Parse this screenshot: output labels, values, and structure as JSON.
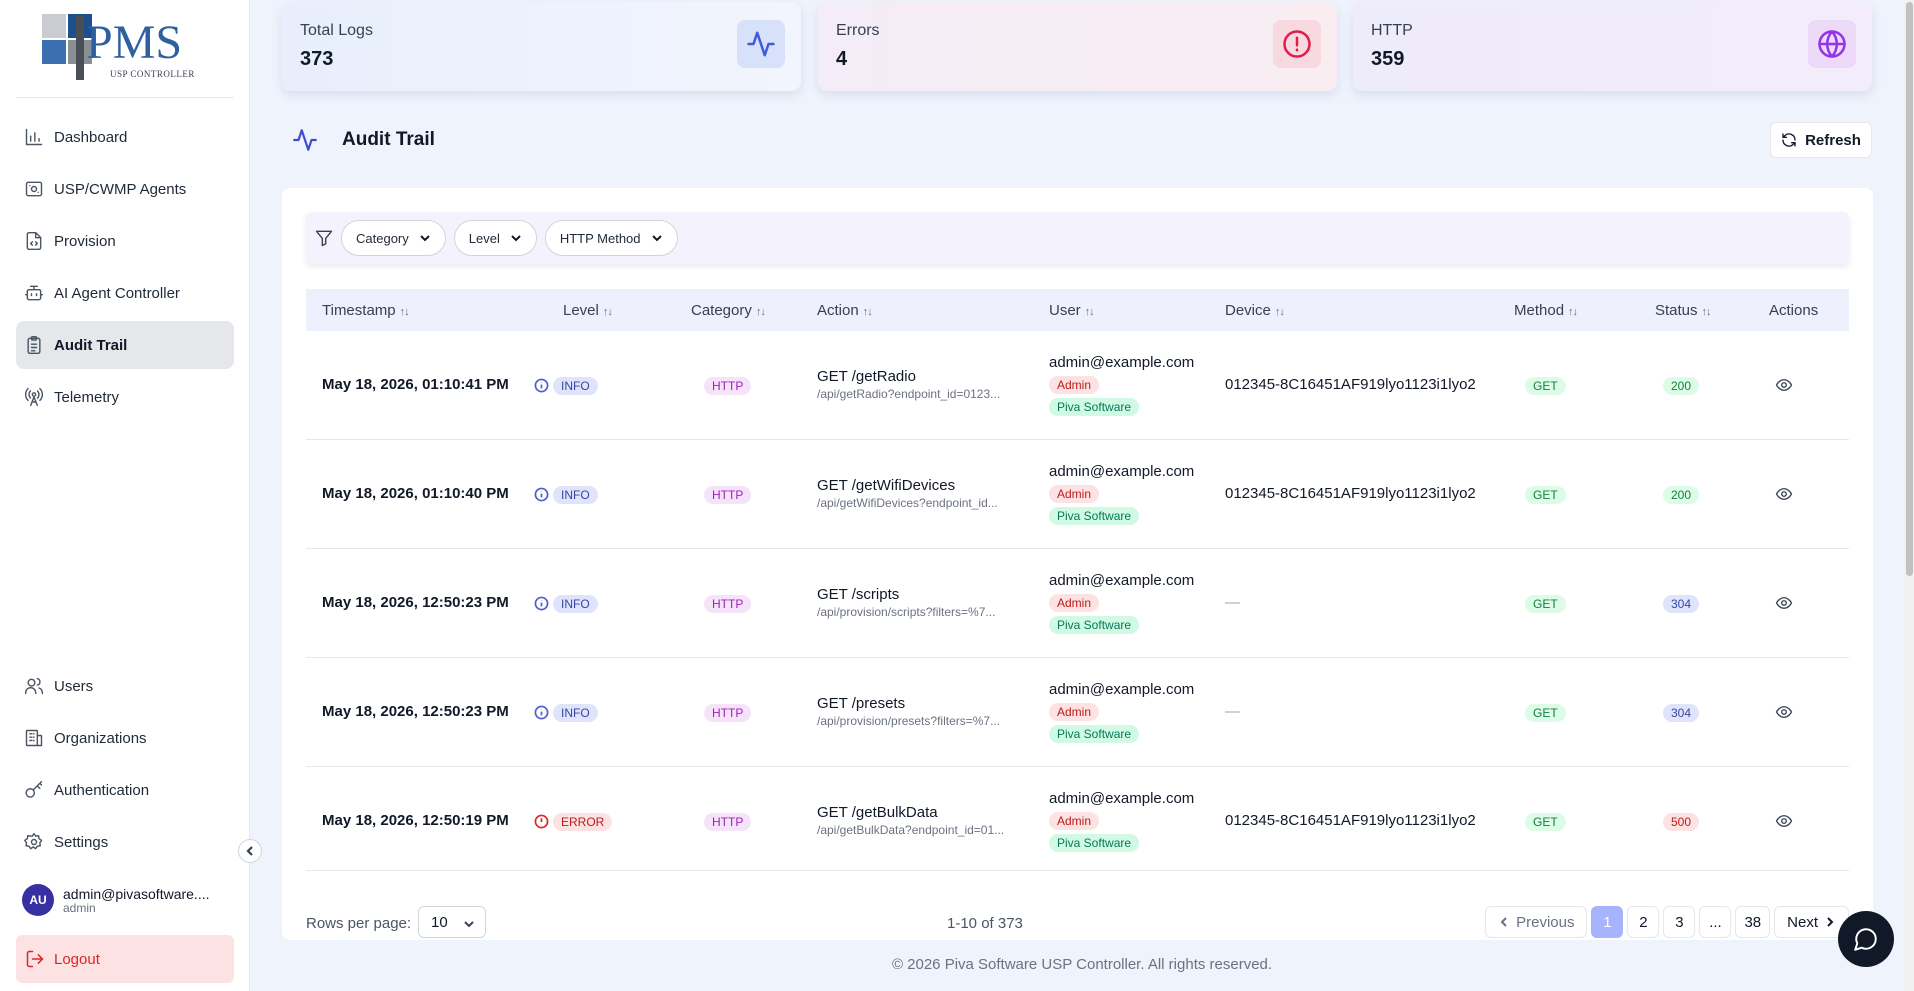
{
  "brand": {
    "logo_text": "PMS",
    "logo_sub": "USP CONTROLLER"
  },
  "sidebar": {
    "items": [
      {
        "label": "Dashboard",
        "icon": "bar-chart-icon"
      },
      {
        "label": "USP/CWMP Agents",
        "icon": "router-icon"
      },
      {
        "label": "Provision",
        "icon": "file-code-icon"
      },
      {
        "label": "AI Agent Controller",
        "icon": "bot-icon"
      },
      {
        "label": "Audit Trail",
        "icon": "clipboard-list-icon",
        "active": true
      },
      {
        "label": "Telemetry",
        "icon": "radio-tower-icon"
      }
    ],
    "bottom_items": [
      {
        "label": "Users",
        "icon": "users-icon"
      },
      {
        "label": "Organizations",
        "icon": "building-icon"
      },
      {
        "label": "Authentication",
        "icon": "key-icon"
      },
      {
        "label": "Settings",
        "icon": "gear-icon"
      }
    ],
    "user": {
      "initials": "AU",
      "name": "admin@pivasoftware....",
      "role": "admin"
    },
    "logout_label": "Logout"
  },
  "stats": [
    {
      "label": "Total Logs",
      "value": "373",
      "icon": "activity-icon"
    },
    {
      "label": "Errors",
      "value": "4",
      "icon": "alert-circle-icon"
    },
    {
      "label": "HTTP",
      "value": "359",
      "icon": "globe-icon"
    }
  ],
  "page": {
    "title": "Audit Trail",
    "refresh_label": "Refresh"
  },
  "filters": [
    "Category",
    "Level",
    "HTTP Method"
  ],
  "table": {
    "columns": [
      "Timestamp",
      "Level",
      "Category",
      "Action",
      "User",
      "Device",
      "Method",
      "Status",
      "Actions"
    ],
    "rows": [
      {
        "timestamp": "May 18, 2026, 01:10:41 PM",
        "level": "INFO",
        "category": "HTTP",
        "action": "GET /getRadio",
        "path": "/api/getRadio?endpoint_id=0123...",
        "user": "admin@example.com",
        "role": "Admin",
        "org": "Piva Software",
        "device": "012345-8C16451AF919lyo1123i1lyo2",
        "method": "GET",
        "status": "200"
      },
      {
        "timestamp": "May 18, 2026, 01:10:40 PM",
        "level": "INFO",
        "category": "HTTP",
        "action": "GET /getWifiDevices",
        "path": "/api/getWifiDevices?endpoint_id...",
        "user": "admin@example.com",
        "role": "Admin",
        "org": "Piva Software",
        "device": "012345-8C16451AF919lyo1123i1lyo2",
        "method": "GET",
        "status": "200"
      },
      {
        "timestamp": "May 18, 2026, 12:50:23 PM",
        "level": "INFO",
        "category": "HTTP",
        "action": "GET /scripts",
        "path": "/api/provision/scripts?filters=%7...",
        "user": "admin@example.com",
        "role": "Admin",
        "org": "Piva Software",
        "device": "—",
        "method": "GET",
        "status": "304"
      },
      {
        "timestamp": "May 18, 2026, 12:50:23 PM",
        "level": "INFO",
        "category": "HTTP",
        "action": "GET /presets",
        "path": "/api/provision/presets?filters=%7...",
        "user": "admin@example.com",
        "role": "Admin",
        "org": "Piva Software",
        "device": "—",
        "method": "GET",
        "status": "304"
      },
      {
        "timestamp": "May 18, 2026, 12:50:19 PM",
        "level": "ERROR",
        "category": "HTTP",
        "action": "GET /getBulkData",
        "path": "/api/getBulkData?endpoint_id=01...",
        "user": "admin@example.com",
        "role": "Admin",
        "org": "Piva Software",
        "device": "012345-8C16451AF919lyo1123i1lyo2",
        "method": "GET",
        "status": "500"
      }
    ]
  },
  "pagination": {
    "rows_per_page_label": "Rows per page:",
    "rows_per_page": "10",
    "range": "1-10 of 373",
    "prev": "Previous",
    "next": "Next",
    "pages": [
      "1",
      "2",
      "3",
      "...",
      "38"
    ],
    "current": "1"
  },
  "footer": {
    "copyright": "© 2026 Piva Software USP Controller. All rights reserved."
  }
}
